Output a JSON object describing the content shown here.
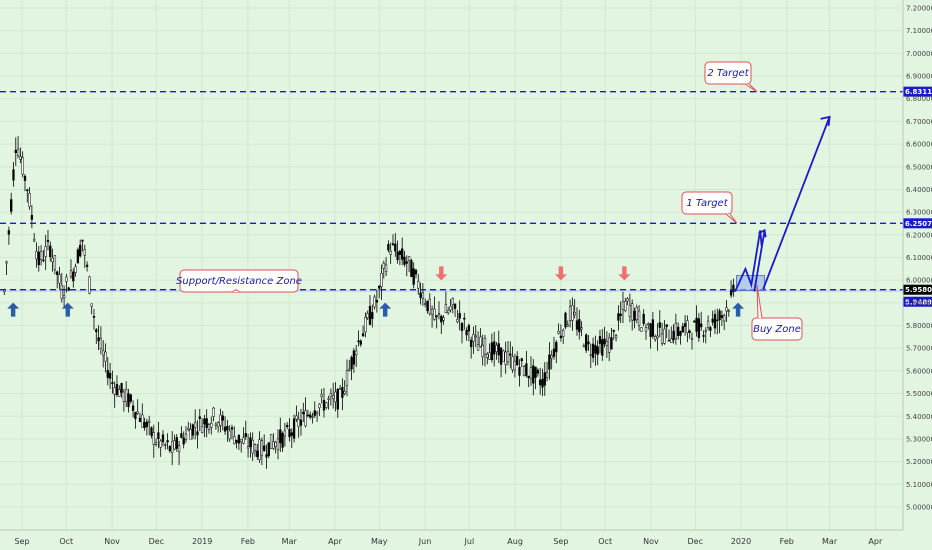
{
  "chart_data": {
    "type": "candlestick",
    "title": "",
    "xlabel": "",
    "ylabel": "",
    "ylim": [
      5.0,
      7.25
    ],
    "y_ticks": [
      "7.20000",
      "7.10000",
      "7.00000",
      "6.90000",
      "6.80000",
      "6.70000",
      "6.60000",
      "6.50000",
      "6.40000",
      "6.30000",
      "6.20000",
      "6.10000",
      "6.00000",
      "5.90000",
      "5.80000",
      "5.70000",
      "5.60000",
      "5.50000",
      "5.40000",
      "5.30000",
      "5.20000",
      "5.10000",
      "5.00000"
    ],
    "x_ticks": [
      "Sep",
      "Oct",
      "Nov",
      "Dec",
      "2019",
      "Feb",
      "Mar",
      "Apr",
      "May",
      "Jun",
      "Jul",
      "Aug",
      "Sep",
      "Oct",
      "Nov",
      "Dec",
      "2020",
      "Feb",
      "Mar",
      "Apr"
    ],
    "price_path": [
      [
        "2018-08-20",
        5.95
      ],
      [
        "2018-08-28",
        6.62
      ],
      [
        "2018-09-05",
        6.4
      ],
      [
        "2018-09-12",
        6.08
      ],
      [
        "2018-09-20",
        6.15
      ],
      [
        "2018-09-28",
        5.95
      ],
      [
        "2018-10-05",
        6.02
      ],
      [
        "2018-10-12",
        6.18
      ],
      [
        "2018-10-22",
        5.75
      ],
      [
        "2018-11-01",
        5.55
      ],
      [
        "2018-11-15",
        5.45
      ],
      [
        "2018-11-30",
        5.3
      ],
      [
        "2018-12-12",
        5.25
      ],
      [
        "2018-12-25",
        5.35
      ],
      [
        "2019-01-10",
        5.4
      ],
      [
        "2019-01-25",
        5.3
      ],
      [
        "2019-02-10",
        5.25
      ],
      [
        "2019-02-28",
        5.32
      ],
      [
        "2019-03-20",
        5.45
      ],
      [
        "2019-04-05",
        5.48
      ],
      [
        "2019-04-15",
        5.7
      ],
      [
        "2019-04-30",
        5.92
      ],
      [
        "2019-05-08",
        6.15
      ],
      [
        "2019-05-20",
        6.08
      ],
      [
        "2019-05-30",
        5.95
      ],
      [
        "2019-06-08",
        5.82
      ],
      [
        "2019-06-20",
        5.88
      ],
      [
        "2019-07-05",
        5.72
      ],
      [
        "2019-07-20",
        5.68
      ],
      [
        "2019-08-05",
        5.62
      ],
      [
        "2019-08-20",
        5.55
      ],
      [
        "2019-08-30",
        5.75
      ],
      [
        "2019-09-08",
        5.86
      ],
      [
        "2019-09-20",
        5.7
      ],
      [
        "2019-10-05",
        5.72
      ],
      [
        "2019-10-15",
        5.9
      ],
      [
        "2019-10-28",
        5.8
      ],
      [
        "2019-11-10",
        5.76
      ],
      [
        "2019-11-25",
        5.78
      ],
      [
        "2019-12-10",
        5.8
      ],
      [
        "2019-12-20",
        5.85
      ],
      [
        "2019-12-28",
        5.95
      ]
    ],
    "levels": [
      {
        "value": 6.83118,
        "label": "6.83118",
        "color": "#1a1acc"
      },
      {
        "value": 6.25075,
        "label": "6.25075",
        "color": "#1a1acc"
      },
      {
        "value": 5.95803,
        "label": "5.95803",
        "color": "#1a1acc"
      },
      {
        "value": 5.94898,
        "label": "5.94898",
        "color": "#1a1acc"
      }
    ],
    "annotations": [
      {
        "text": "2 Target"
      },
      {
        "text": "1 Target"
      },
      {
        "text": "Support/Resistance Zone"
      },
      {
        "text": "Buy Zone"
      }
    ],
    "projection": [
      [
        "2019-12-28",
        5.95
      ],
      [
        "2020-01-04",
        6.05
      ],
      [
        "2020-01-08",
        5.98
      ],
      [
        "2020-01-14",
        6.22
      ],
      [
        "2020-01-15",
        6.15
      ],
      [
        "2020-03-01",
        6.72
      ]
    ],
    "up_markers": [
      "2018-08-26",
      "2018-10-02",
      "2019-05-05",
      "2019-12-30"
    ],
    "down_markers": [
      "2019-06-12",
      "2019-09-01",
      "2019-10-14"
    ]
  },
  "colors": {
    "background": "#e1f5e1",
    "level": "#1a1acc",
    "candle_up": "#ffffff",
    "candle_down": "#000000",
    "up_arrow": "#2a5caa",
    "down_arrow": "#f07070",
    "note_border": "#e05050",
    "buy_zone": "#9bb7ef"
  }
}
